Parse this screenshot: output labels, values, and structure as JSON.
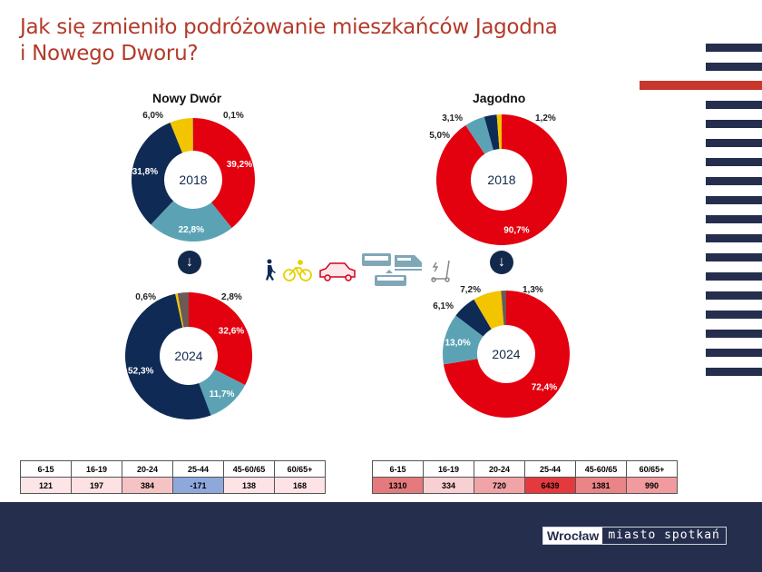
{
  "title_line1": "Jak się zmieniło podróżowanie mieszkańców Jagodna",
  "title_line2": "i Nowego Dworu?",
  "colors": {
    "car": "#e3000f",
    "transit": "#5ba3b4",
    "walk": "#0f2a55",
    "bike": "#f2c500",
    "other": "#6b5a55",
    "navy": "#262e4d",
    "accent": "#c9372c"
  },
  "icons": [
    "walk-icon",
    "bike-icon",
    "car-icon",
    "bus-icon",
    "train-icon",
    "tram-icon",
    "scooter-icon"
  ],
  "chart_data": [
    {
      "type": "pie",
      "place": "Nowy Dwór",
      "year": "2018",
      "categories": [
        "car",
        "transit",
        "walk",
        "bike",
        "other"
      ],
      "values": [
        39.2,
        22.8,
        31.8,
        6.0,
        0.1
      ],
      "labels": [
        "39,2%",
        "22,8%",
        "31,8%",
        "6,0%",
        "0,1%"
      ]
    },
    {
      "type": "pie",
      "place": "Nowy Dwór",
      "year": "2024",
      "categories": [
        "car",
        "transit",
        "walk",
        "bike",
        "other"
      ],
      "values": [
        32.6,
        11.7,
        52.3,
        0.6,
        2.8
      ],
      "labels": [
        "32,6%",
        "11,7%",
        "52,3%",
        "0,6%",
        "2,8%"
      ]
    },
    {
      "type": "pie",
      "place": "Jagodno",
      "year": "2018",
      "categories": [
        "car",
        "transit",
        "walk",
        "bike",
        "other"
      ],
      "values": [
        90.7,
        5.0,
        3.1,
        1.2,
        0
      ],
      "labels": [
        "90,7%",
        "5,0%",
        "3,1%",
        "1,2%",
        ""
      ]
    },
    {
      "type": "pie",
      "place": "Jagodno",
      "year": "2024",
      "categories": [
        "car",
        "transit",
        "walk",
        "bike",
        "other"
      ],
      "values": [
        72.4,
        13.0,
        6.1,
        7.2,
        1.3
      ],
      "labels": [
        "72,4%",
        "13,0%",
        "6,1%",
        "7,2%",
        "1,3%"
      ]
    }
  ],
  "places": {
    "left": "Nowy Dwór",
    "right": "Jagodno"
  },
  "tables": {
    "headers": [
      "6-15",
      "16-19",
      "20-24",
      "25-44",
      "45-60/65",
      "60/65+"
    ],
    "left_values": [
      "121",
      "197",
      "384",
      "-171",
      "138",
      "168"
    ],
    "right_values": [
      "1310",
      "334",
      "720",
      "6439",
      "1381",
      "990"
    ]
  },
  "footer": {
    "logo_city": "Wrocław",
    "logo_slogan": "miasto spotkań"
  }
}
